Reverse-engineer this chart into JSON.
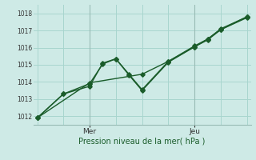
{
  "xlabel": "Pression niveau de la mer( hPa )",
  "bg_color": "#ceeae6",
  "grid_color": "#a8d5ce",
  "line_color": "#1a5c2a",
  "ylim": [
    1011.5,
    1018.5
  ],
  "yticks": [
    1012,
    1013,
    1014,
    1015,
    1016,
    1017,
    1018
  ],
  "xlim": [
    -0.3,
    16.3
  ],
  "day_markers": [
    {
      "label": "Mer",
      "x": 4
    },
    {
      "label": "Jeu",
      "x": 12
    }
  ],
  "line1_x": [
    0,
    2,
    4,
    5,
    6,
    7,
    8,
    10,
    12,
    13,
    14,
    16
  ],
  "line1_y": [
    1011.9,
    1013.3,
    1013.75,
    1015.1,
    1015.35,
    1014.4,
    1013.5,
    1015.15,
    1016.05,
    1016.45,
    1017.05,
    1017.75
  ],
  "line2_x": [
    0,
    2,
    4,
    5,
    6,
    7,
    8,
    10,
    12,
    13,
    14,
    16
  ],
  "line2_y": [
    1011.9,
    1013.3,
    1013.9,
    1015.05,
    1015.35,
    1014.45,
    1013.55,
    1015.2,
    1016.05,
    1016.5,
    1017.1,
    1017.8
  ],
  "line3_x": [
    0,
    4,
    8,
    10,
    12,
    13,
    14,
    16
  ],
  "line3_y": [
    1011.9,
    1013.95,
    1014.45,
    1015.2,
    1016.1,
    1016.5,
    1017.05,
    1017.8
  ],
  "marker": "D",
  "markersize": 2.8,
  "linewidth": 1.0
}
